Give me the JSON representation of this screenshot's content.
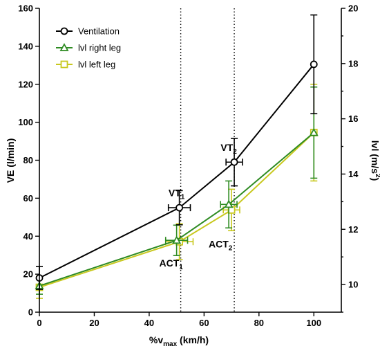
{
  "chart_data": {
    "type": "line",
    "xlabel": "%v",
    "xlabel_subscript": "max",
    "xlabel_unit": " (km/h)",
    "ylabel": "VE (l/min)",
    "y2label": "lvl (m/s",
    "y2label_superscript": "2",
    "y2label_close": ")",
    "xlim": [
      0,
      110
    ],
    "ylim": [
      0,
      160
    ],
    "y2lim": [
      9,
      20
    ],
    "x_ticks": [
      0,
      20,
      40,
      60,
      80,
      100
    ],
    "y_ticks": [
      0,
      20,
      40,
      60,
      80,
      100,
      120,
      140,
      160
    ],
    "y2_ticks": [
      10,
      12,
      14,
      16,
      18,
      20
    ],
    "grid": false,
    "legend_position": "top-left",
    "vertical_lines": [
      51.5,
      71
    ],
    "annotations": [
      {
        "id": "vt1",
        "text": "VT",
        "sub": "1",
        "x": 50,
        "y": 61
      },
      {
        "id": "vt2",
        "text": "VT",
        "sub": "2",
        "x": 69,
        "y": 85
      },
      {
        "id": "act1",
        "text": "ACT",
        "sub": "1",
        "x": 48,
        "y": 24
      },
      {
        "id": "act2",
        "text": "ACT",
        "sub": "2",
        "x": 66,
        "y": 34
      }
    ],
    "series": [
      {
        "name": "Ventilation",
        "axis": "left",
        "color": "#000000",
        "marker": "circle",
        "points": [
          {
            "x": 0,
            "y": 18,
            "yerr": 6,
            "xerr": 0
          },
          {
            "x": 51,
            "y": 55,
            "yerr": 9,
            "xerr": 4
          },
          {
            "x": 71,
            "y": 79,
            "yerr": 12.5,
            "xerr": 3
          },
          {
            "x": 100,
            "y": 130.5,
            "yerr": 26,
            "xerr": 0
          }
        ]
      },
      {
        "name": "lvl right leg",
        "axis": "right",
        "color": "#2e8b22",
        "marker": "triangle",
        "points": [
          {
            "x": 0,
            "y": 9.95,
            "yerr": 0.3,
            "xerr": 0
          },
          {
            "x": 50,
            "y": 11.6,
            "yerr": 0.55,
            "xerr": 4
          },
          {
            "x": 69,
            "y": 12.9,
            "yerr": 0.85,
            "xerr": 3
          },
          {
            "x": 100,
            "y": 15.5,
            "yerr": 1.65,
            "xerr": 0
          }
        ]
      },
      {
        "name": "lvl left leg",
        "axis": "right",
        "color": "#c8c81e",
        "marker": "square",
        "points": [
          {
            "x": 0,
            "y": 9.9,
            "yerr": 0.4,
            "xerr": 0
          },
          {
            "x": 51,
            "y": 11.55,
            "yerr": 0.65,
            "xerr": 5
          },
          {
            "x": 70,
            "y": 12.7,
            "yerr": 0.75,
            "xerr": 3
          },
          {
            "x": 100,
            "y": 15.5,
            "yerr": 1.75,
            "xerr": 0
          }
        ]
      }
    ]
  }
}
